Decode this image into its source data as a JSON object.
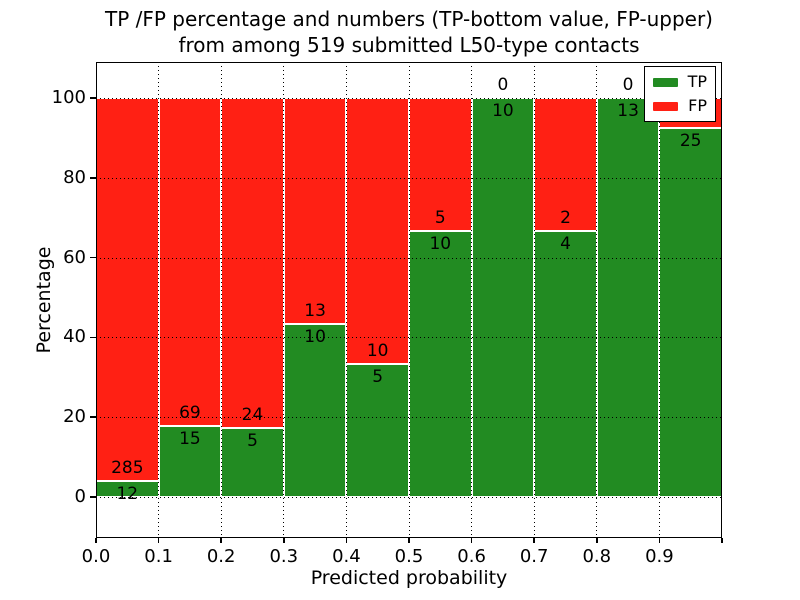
{
  "title": {
    "line1": "TP /FP percentage and numbers (TP-bottom value, FP-upper)",
    "line2": "from among 519 submitted L50-type contacts"
  },
  "axes": {
    "xlabel": "Predicted probability",
    "ylabel": "Percentage",
    "x_ticks": [
      {
        "label": "0.0",
        "v": 0.0
      },
      {
        "label": "0.1",
        "v": 0.1
      },
      {
        "label": "0.2",
        "v": 0.2
      },
      {
        "label": "0.3",
        "v": 0.3
      },
      {
        "label": "0.4",
        "v": 0.4
      },
      {
        "label": "0.5",
        "v": 0.5
      },
      {
        "label": "0.6",
        "v": 0.6
      },
      {
        "label": "0.7",
        "v": 0.7
      },
      {
        "label": "0.8",
        "v": 0.8
      },
      {
        "label": "0.9",
        "v": 0.9
      },
      {
        "label": "",
        "v": 1.0
      }
    ],
    "y_ticks": [
      {
        "label": "0",
        "v": 0
      },
      {
        "label": "20",
        "v": 20
      },
      {
        "label": "40",
        "v": 40
      },
      {
        "label": "60",
        "v": 60
      },
      {
        "label": "80",
        "v": 80
      },
      {
        "label": "100",
        "v": 100
      }
    ]
  },
  "legend": {
    "position": "upper-right",
    "entries": [
      {
        "label": "TP",
        "color": "#228b22",
        "icon": "tp-green-swatch-icon"
      },
      {
        "label": "FP",
        "color": "#ff2014",
        "icon": "fp-red-swatch-icon"
      }
    ]
  },
  "colors": {
    "tp": "#228b22",
    "fp": "#ff2014",
    "grid": "#000000",
    "background": "#ffffff"
  },
  "chart_data": {
    "type": "bar",
    "stacked": true,
    "normalized": "each bar scaled to 100% (TP% bottom green, FP% top red)",
    "title": "TP /FP percentage and numbers (TP-bottom value, FP-upper) from among 519 submitted L50-type contacts",
    "xlabel": "Predicted probability",
    "ylabel": "Percentage",
    "total_submitted": 519,
    "xlim": [
      0.0,
      1.0
    ],
    "ylim": [
      -10.5,
      109
    ],
    "bin_width": 0.1,
    "grid": "dotted black, vertical at every 0.1, horizontal at every 20%",
    "legend_position": "upper right",
    "categories": [
      "0.0-0.1",
      "0.1-0.2",
      "0.2-0.3",
      "0.3-0.4",
      "0.4-0.5",
      "0.5-0.6",
      "0.6-0.7",
      "0.7-0.8",
      "0.8-0.9",
      "0.9-1.0"
    ],
    "series": [
      {
        "name": "TP",
        "values": [
          12,
          15,
          5,
          10,
          5,
          10,
          10,
          4,
          13,
          25
        ]
      },
      {
        "name": "FP",
        "values": [
          285,
          69,
          24,
          13,
          10,
          5,
          0,
          2,
          0,
          2
        ]
      }
    ],
    "y_gridlines": [
      0,
      20,
      40,
      60,
      80,
      100
    ],
    "bars": [
      {
        "range": "0.0-0.1",
        "tp": 12,
        "fp": 285,
        "tp_pct": 4.04
      },
      {
        "range": "0.1-0.2",
        "tp": 15,
        "fp": 69,
        "tp_pct": 17.86
      },
      {
        "range": "0.2-0.3",
        "tp": 5,
        "fp": 24,
        "tp_pct": 17.24
      },
      {
        "range": "0.3-0.4",
        "tp": 10,
        "fp": 13,
        "tp_pct": 43.48
      },
      {
        "range": "0.4-0.5",
        "tp": 5,
        "fp": 10,
        "tp_pct": 33.33
      },
      {
        "range": "0.5-0.6",
        "tp": 10,
        "fp": 5,
        "tp_pct": 66.67
      },
      {
        "range": "0.6-0.7",
        "tp": 10,
        "fp": 0,
        "tp_pct": 100.0
      },
      {
        "range": "0.7-0.8",
        "tp": 4,
        "fp": 2,
        "tp_pct": 66.67
      },
      {
        "range": "0.8-0.9",
        "tp": 13,
        "fp": 0,
        "tp_pct": 100.0
      },
      {
        "range": "0.9-1.0",
        "tp": 25,
        "fp": 2,
        "tp_pct": 92.59
      }
    ]
  }
}
